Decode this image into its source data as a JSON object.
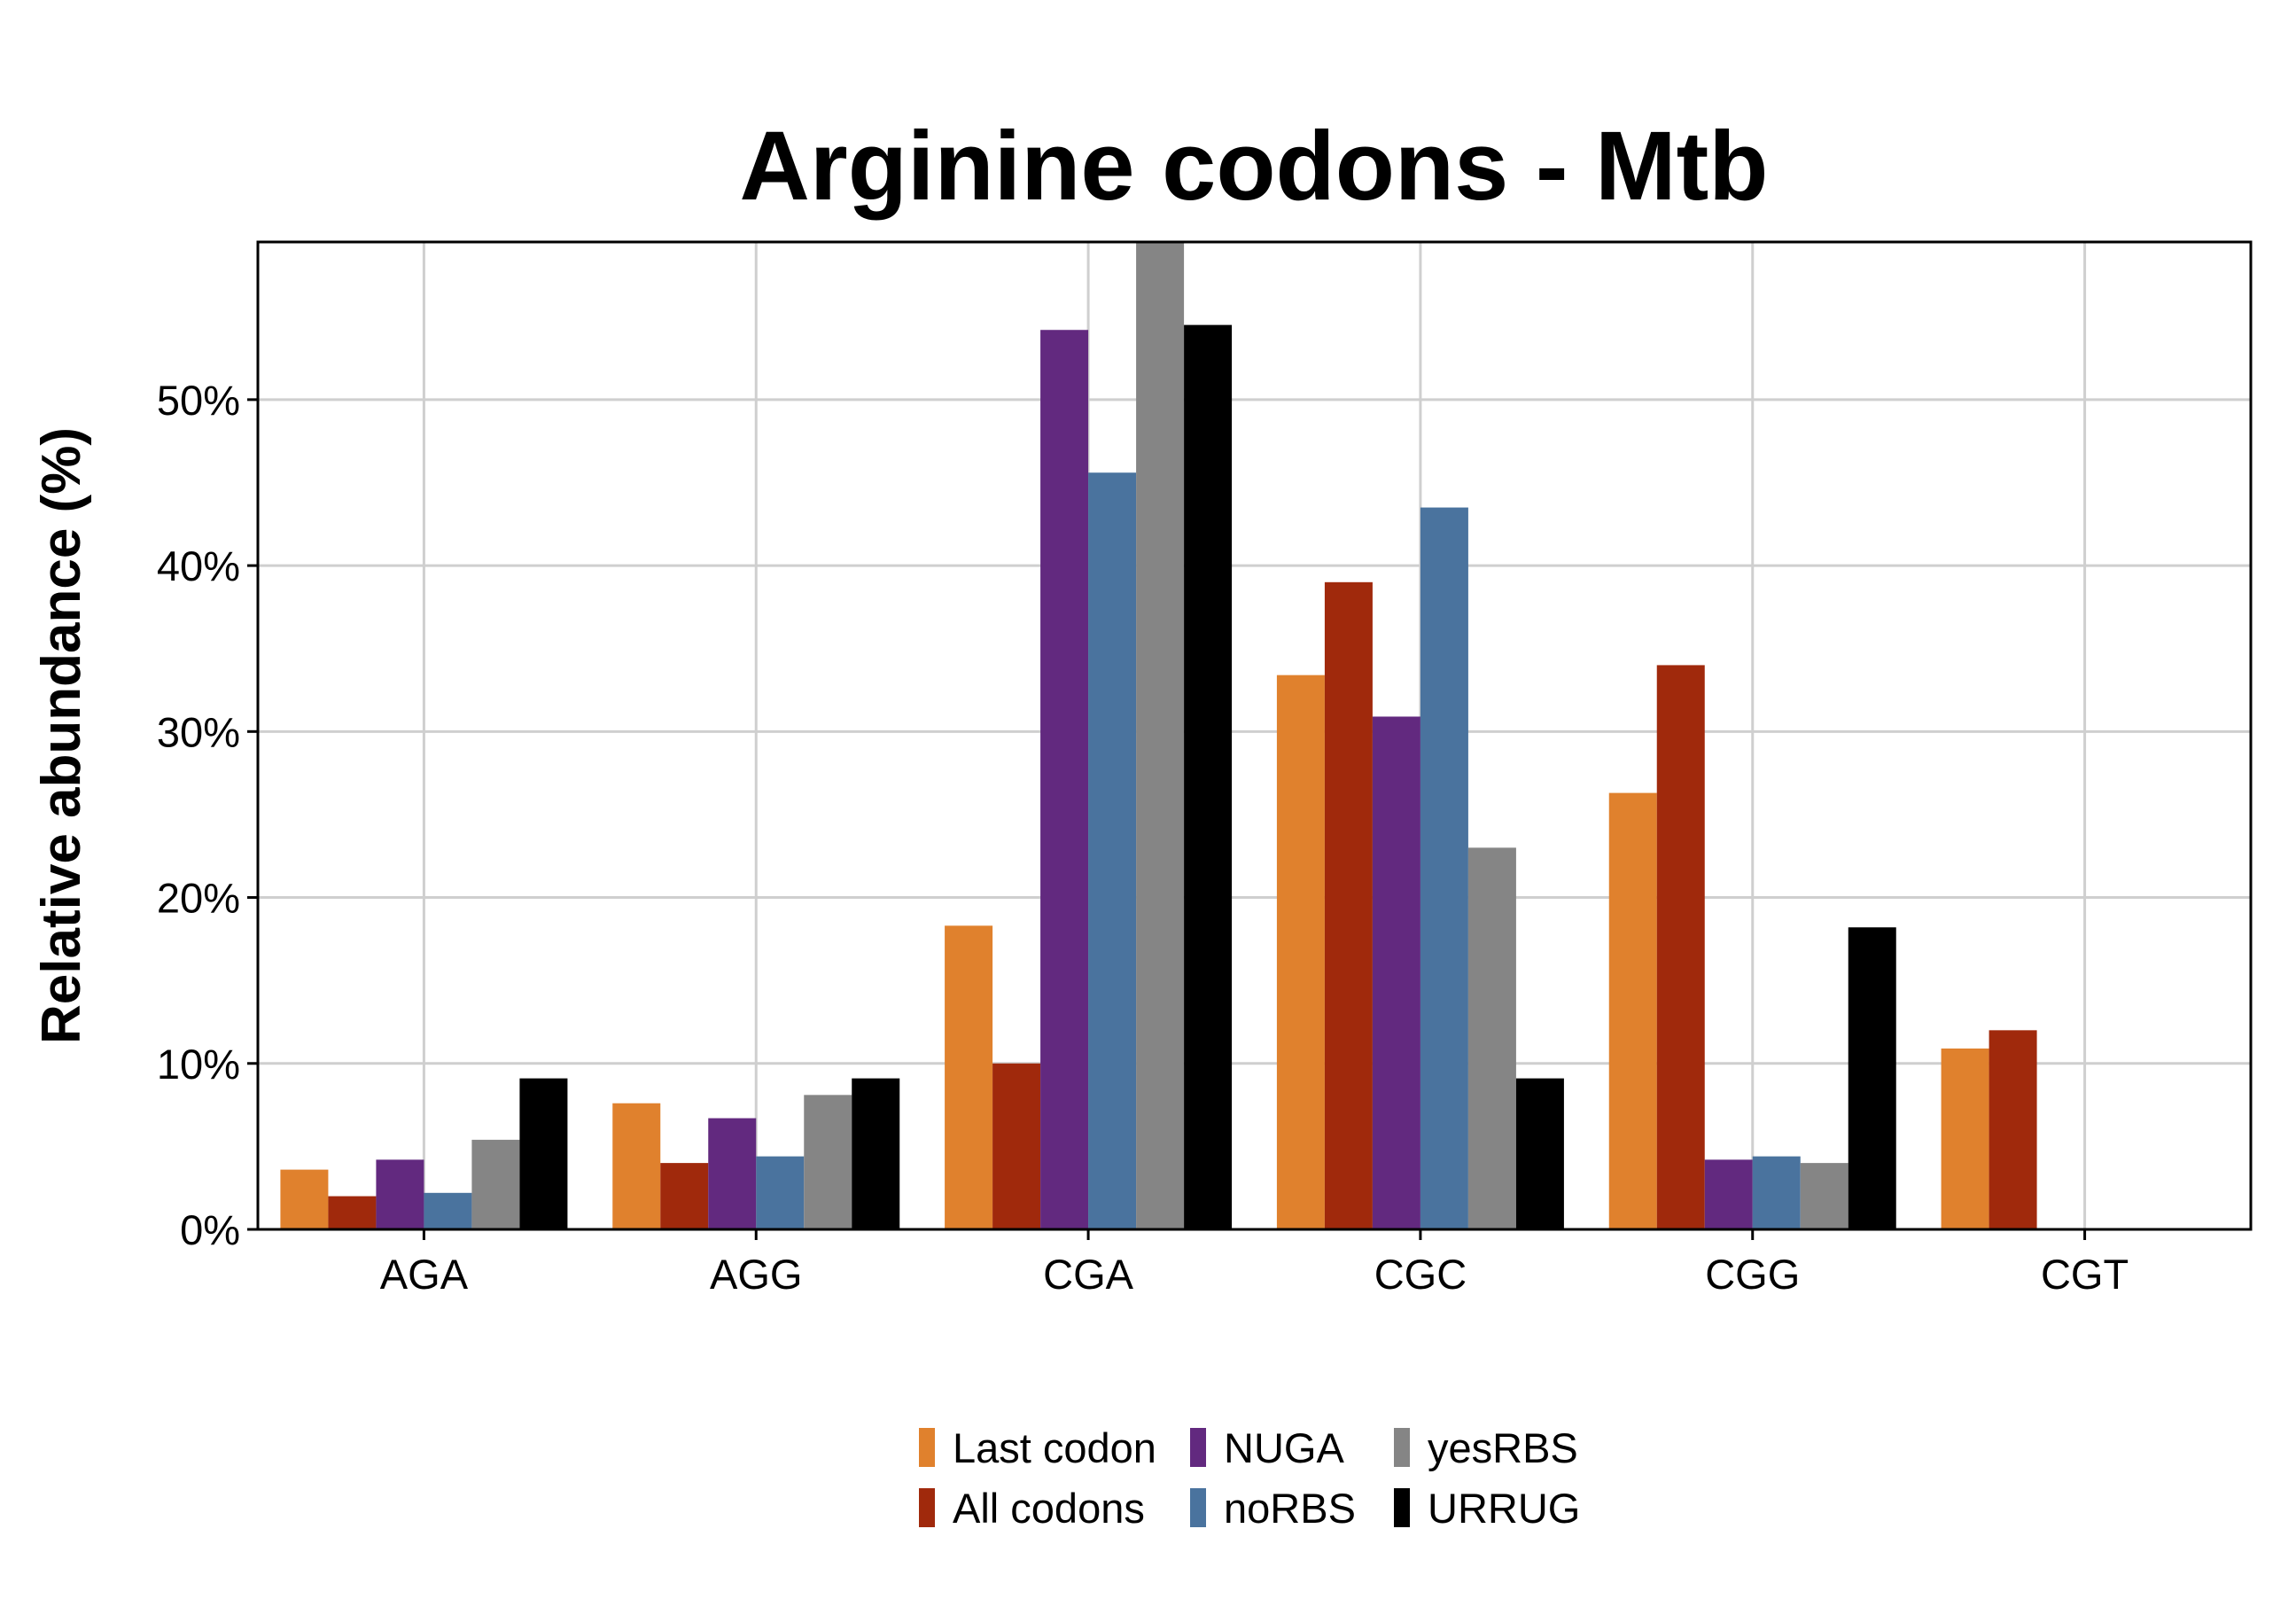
{
  "chart_data": {
    "type": "bar",
    "title": "Arginine codons - Mtb",
    "xlabel": "",
    "ylabel": "Relative abundance (%)",
    "ylim": [
      0,
      59.5
    ],
    "yticks": [
      0,
      10,
      20,
      30,
      40,
      50
    ],
    "ytick_labels": [
      "0%",
      "10%",
      "20%",
      "30%",
      "40%",
      "50%"
    ],
    "grid": true,
    "legend_position": "bottom",
    "categories": [
      "AGA",
      "AGG",
      "CGA",
      "CGC",
      "CGG",
      "CGT"
    ],
    "series": [
      {
        "name": "Last codon",
        "color": "#E0812D",
        "values": [
          3.6,
          7.6,
          18.3,
          33.4,
          26.3,
          10.9
        ]
      },
      {
        "name": "All codons",
        "color": "#A0290C",
        "values": [
          2.0,
          4.0,
          10.0,
          39.0,
          34.0,
          12.0
        ]
      },
      {
        "name": "NUGA",
        "color": "#62297F",
        "values": [
          4.2,
          6.7,
          54.2,
          30.9,
          4.2,
          0
        ]
      },
      {
        "name": "noRBS",
        "color": "#4A739E",
        "values": [
          2.2,
          4.4,
          45.6,
          43.5,
          4.4,
          0
        ]
      },
      {
        "name": "yesRBS",
        "color": "#858585",
        "values": [
          5.4,
          8.1,
          59.5,
          23.0,
          4.0,
          0
        ]
      },
      {
        "name": "URRUG",
        "color": "#000000",
        "values": [
          9.1,
          9.1,
          54.5,
          9.1,
          18.2,
          0
        ]
      }
    ],
    "legend_layout": [
      [
        "Last codon",
        "NUGA",
        "yesRBS"
      ],
      [
        "All codons",
        "noRBS",
        "URRUG"
      ]
    ]
  }
}
